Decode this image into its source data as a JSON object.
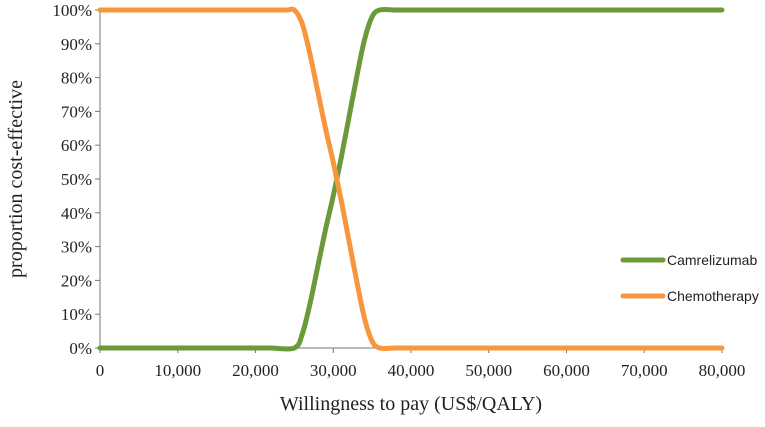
{
  "chart_data": {
    "type": "line",
    "title": "",
    "xlabel": "Willingness to pay (US$/QALY)",
    "ylabel": "proportion cost-effective",
    "xlim": [
      0,
      80000
    ],
    "ylim": [
      0,
      100
    ],
    "xticks": [
      0,
      10000,
      20000,
      30000,
      40000,
      50000,
      60000,
      70000,
      80000
    ],
    "xtick_labels": [
      "0",
      "10,000",
      "20,000",
      "30,000",
      "40,000",
      "50,000",
      "60,000",
      "70,000",
      "80,000"
    ],
    "yticks": [
      0,
      10,
      20,
      30,
      40,
      50,
      60,
      70,
      80,
      90,
      100
    ],
    "ytick_labels": [
      "0%",
      "10%",
      "20%",
      "30%",
      "40%",
      "50%",
      "60%",
      "70%",
      "80%",
      "90%",
      "100%"
    ],
    "grid": false,
    "legend_position": "right",
    "series": [
      {
        "name": "Camrelizumab",
        "color": "#6a9a3a",
        "x": [
          0,
          5000,
          10000,
          15000,
          20000,
          21000,
          22000,
          25000,
          26000,
          27000,
          28000,
          29000,
          30000,
          31000,
          32000,
          33000,
          34000,
          35000,
          36000,
          38000,
          40000,
          45000,
          50000,
          60000,
          70000,
          80000
        ],
        "y": [
          0,
          0,
          0,
          0,
          0,
          0,
          0,
          0,
          4,
          13,
          24,
          35,
          45,
          56,
          68,
          80,
          91,
          98,
          100,
          100,
          100,
          100,
          100,
          100,
          100,
          100
        ]
      },
      {
        "name": "Chemotherapy",
        "color": "#f7963c",
        "x": [
          0,
          5000,
          10000,
          15000,
          20000,
          21000,
          24000,
          25000,
          26000,
          27000,
          28000,
          29000,
          30000,
          31000,
          32000,
          33000,
          34000,
          35000,
          36000,
          38000,
          40000,
          45000,
          50000,
          60000,
          70000,
          80000
        ],
        "y": [
          100,
          100,
          100,
          100,
          100,
          100,
          100,
          100,
          96,
          87,
          76,
          65,
          55,
          44,
          32,
          20,
          9,
          2,
          0,
          0,
          0,
          0,
          0,
          0,
          0,
          0
        ]
      }
    ]
  }
}
